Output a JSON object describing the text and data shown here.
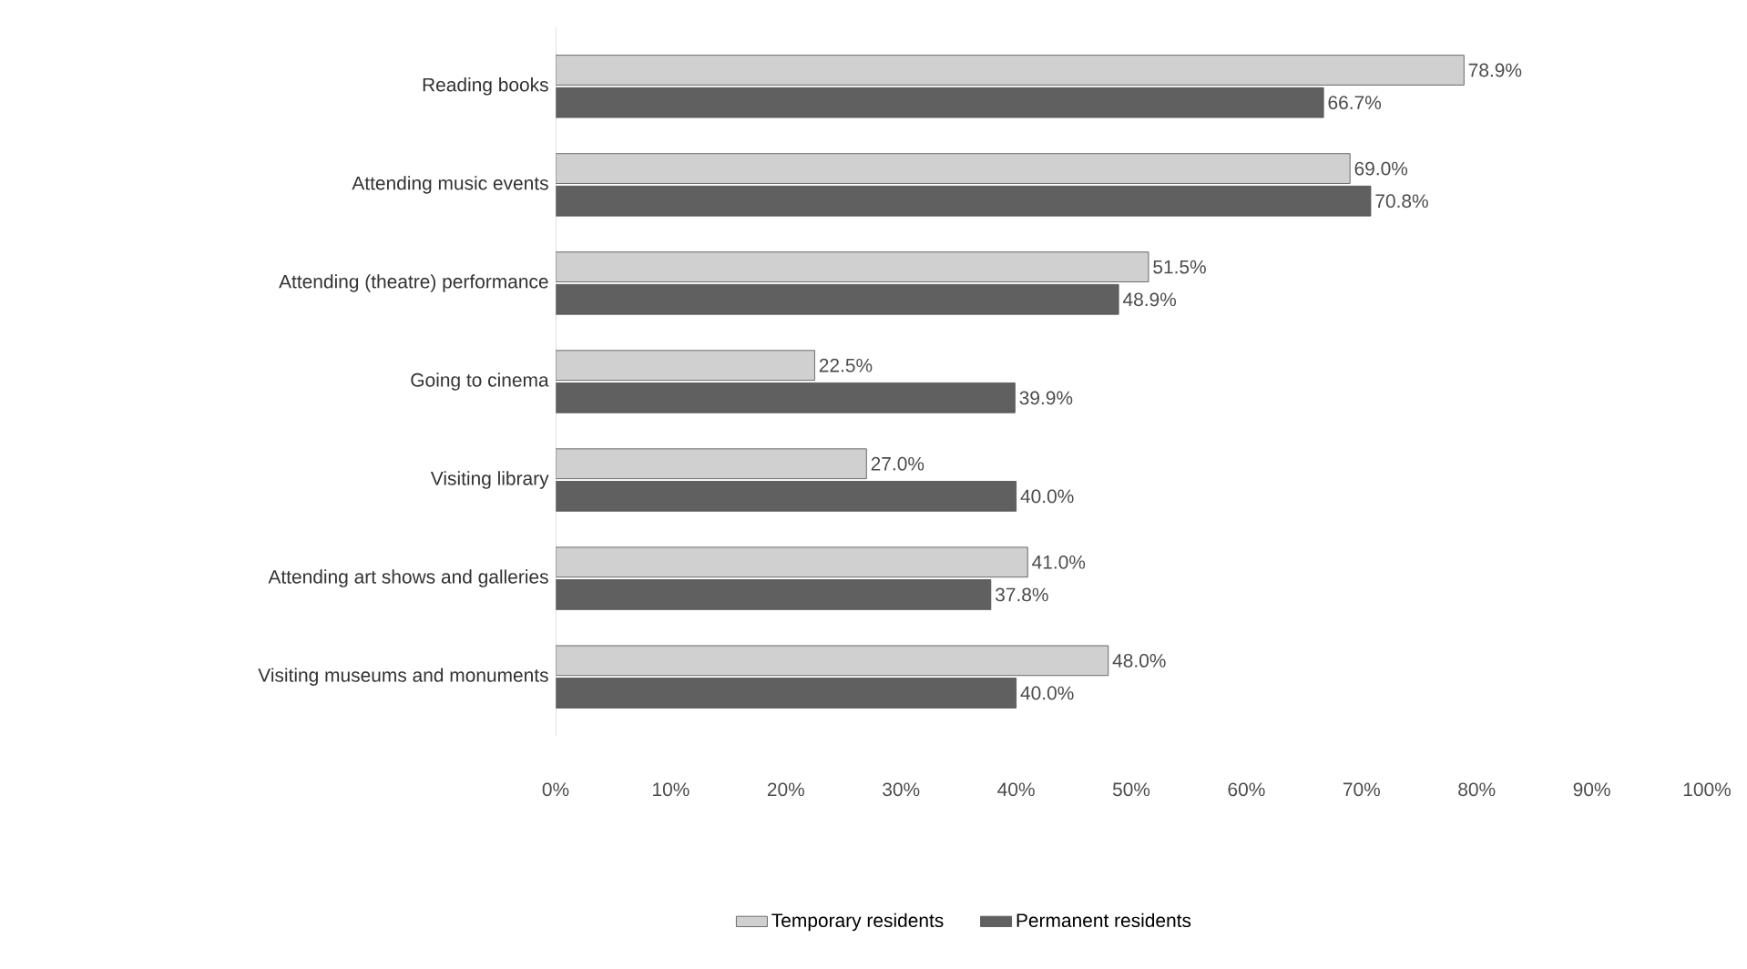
{
  "chart_data": {
    "type": "bar",
    "orientation": "horizontal",
    "categories": [
      "Reading books",
      "Attending music events",
      "Attending (theatre) performance",
      "Going to cinema",
      "Visiting library",
      "Attending art shows and galleries",
      "Visiting museums and monuments"
    ],
    "series": [
      {
        "name": "Temporary residents",
        "color": "#d0d0d0",
        "values": [
          78.9,
          69.0,
          51.5,
          22.5,
          27.0,
          41.0,
          48.0
        ],
        "value_labels": [
          "78.9%",
          "69.0%",
          "51.5%",
          "22.5%",
          "27.0%",
          "41.0%",
          "48.0%"
        ]
      },
      {
        "name": "Permanent residents",
        "color": "#606060",
        "values": [
          66.7,
          70.8,
          48.9,
          39.9,
          40.0,
          37.8,
          40.0
        ],
        "value_labels": [
          "66.7%",
          "70.8%",
          "48.9%",
          "39.9%",
          "40.0%",
          "37.8%",
          "40.0%"
        ]
      }
    ],
    "xlim": [
      0,
      100
    ],
    "xticks": [
      {
        "value": 0,
        "label": "0%"
      },
      {
        "value": 10,
        "label": "10%"
      },
      {
        "value": 20,
        "label": "20%"
      },
      {
        "value": 30,
        "label": "30%"
      },
      {
        "value": 40,
        "label": "40%"
      },
      {
        "value": 50,
        "label": "50%"
      },
      {
        "value": 60,
        "label": "60%"
      },
      {
        "value": 70,
        "label": "70%"
      },
      {
        "value": 80,
        "label": "80%"
      },
      {
        "value": 90,
        "label": "90%"
      },
      {
        "value": 100,
        "label": "100%"
      }
    ],
    "legend": "bottom"
  }
}
